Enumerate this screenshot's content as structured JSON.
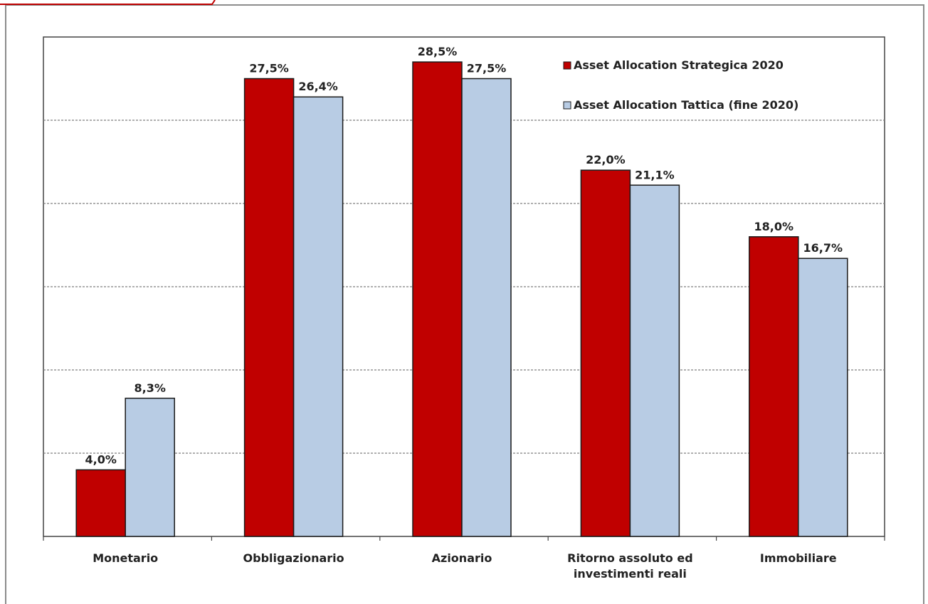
{
  "chart_data": {
    "type": "bar",
    "categories": [
      [
        "Monetario"
      ],
      [
        "Obbligazionario"
      ],
      [
        "Azionario"
      ],
      [
        "Ritorno assoluto ed",
        "investimenti reali"
      ],
      [
        "Immobiliare"
      ]
    ],
    "series": [
      {
        "name": "Asset Allocation Strategica 2020",
        "color": "#c00000",
        "values": [
          4.0,
          27.5,
          28.5,
          22.0,
          18.0
        ],
        "labels": [
          "4,0%",
          "27,5%",
          "28,5%",
          "22,0%",
          "18,0%"
        ]
      },
      {
        "name": "Asset Allocation Tattica (fine 2020)",
        "color": "#b8cce4",
        "values": [
          8.3,
          26.4,
          27.5,
          21.1,
          16.7
        ],
        "labels": [
          "8,3%",
          "26,4%",
          "27,5%",
          "21,1%",
          "16,7%"
        ]
      }
    ],
    "ylim": [
      0,
      30
    ],
    "y_axis_labels_visible": false,
    "grid": true,
    "legend_position": "top-right",
    "title": "",
    "xlabel": "",
    "ylabel": ""
  },
  "colors": {
    "frame_border": "#8c8c8c",
    "plot_border": "#444444",
    "gridline": "#7f7f7f",
    "top_accent": "#c00000"
  }
}
